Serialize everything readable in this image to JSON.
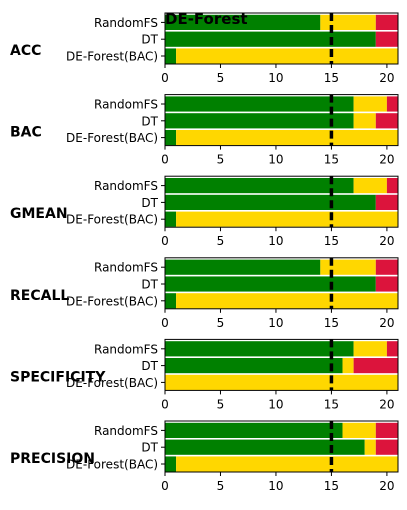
{
  "chart_data": {
    "type": "bar",
    "orientation": "horizontal-stacked",
    "title": "DE-Forest",
    "xlim": [
      0,
      21
    ],
    "xticks": [
      "0",
      "5",
      "10",
      "15",
      "20"
    ],
    "reference_line_x": 15,
    "categories": [
      "RandomFS",
      "DT",
      "DE-Forest(BAC)"
    ],
    "segment_colors": [
      "#008000",
      "#ffd700",
      "#dc143c"
    ],
    "panels": [
      {
        "metric": "ACC",
        "bars": [
          {
            "category": "RandomFS",
            "segments": [
              14,
              5,
              2
            ]
          },
          {
            "category": "DT",
            "segments": [
              19,
              0,
              2
            ]
          },
          {
            "category": "DE-Forest(BAC)",
            "segments": [
              1,
              20,
              0
            ]
          }
        ]
      },
      {
        "metric": "BAC",
        "bars": [
          {
            "category": "RandomFS",
            "segments": [
              17,
              3,
              1
            ]
          },
          {
            "category": "DT",
            "segments": [
              17,
              2,
              2
            ]
          },
          {
            "category": "DE-Forest(BAC)",
            "segments": [
              1,
              20,
              0
            ]
          }
        ]
      },
      {
        "metric": "GMEAN",
        "bars": [
          {
            "category": "RandomFS",
            "segments": [
              17,
              3,
              1
            ]
          },
          {
            "category": "DT",
            "segments": [
              19,
              0,
              2
            ]
          },
          {
            "category": "DE-Forest(BAC)",
            "segments": [
              1,
              20,
              0
            ]
          }
        ]
      },
      {
        "metric": "RECALL",
        "bars": [
          {
            "category": "RandomFS",
            "segments": [
              14,
              5,
              2
            ]
          },
          {
            "category": "DT",
            "segments": [
              19,
              0,
              2
            ]
          },
          {
            "category": "DE-Forest(BAC)",
            "segments": [
              1,
              20,
              0
            ]
          }
        ]
      },
      {
        "metric": "SPECIFICITY",
        "bars": [
          {
            "category": "RandomFS",
            "segments": [
              17,
              3,
              1
            ]
          },
          {
            "category": "DT",
            "segments": [
              16,
              1,
              4
            ]
          },
          {
            "category": "DE-Forest(BAC)",
            "segments": [
              0,
              21,
              0
            ]
          }
        ]
      },
      {
        "metric": "PRECISION",
        "bars": [
          {
            "category": "RandomFS",
            "segments": [
              16,
              3,
              2
            ]
          },
          {
            "category": "DT",
            "segments": [
              18,
              1,
              2
            ]
          },
          {
            "category": "DE-Forest(BAC)",
            "segments": [
              1,
              20,
              0
            ]
          }
        ]
      }
    ]
  }
}
